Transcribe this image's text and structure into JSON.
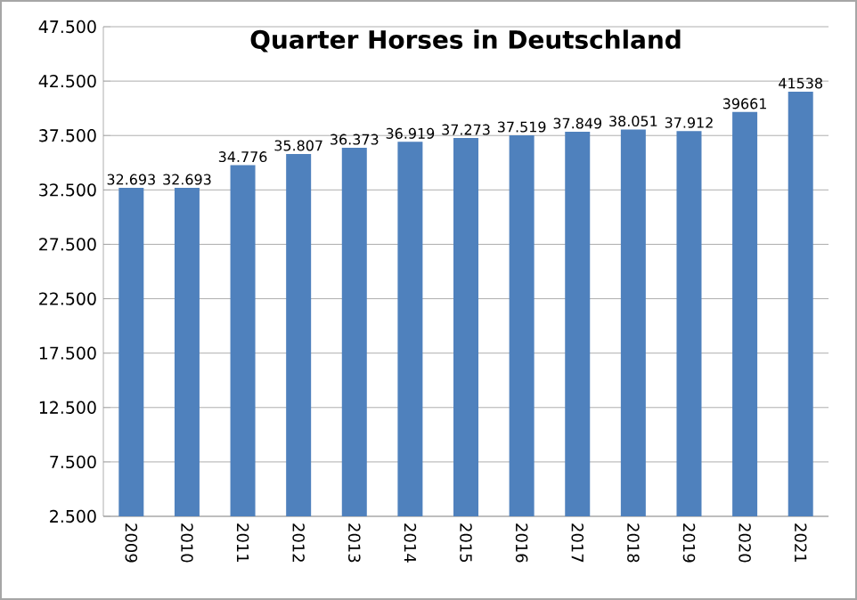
{
  "chart_data": {
    "type": "bar",
    "title": "Quarter Horses in Deutschland",
    "categories": [
      "2009",
      "2010",
      "2011",
      "2012",
      "2013",
      "2014",
      "2015",
      "2016",
      "2017",
      "2018",
      "2019",
      "2020",
      "2021"
    ],
    "values": [
      32693,
      32693,
      34776,
      35807,
      36373,
      36919,
      37273,
      37519,
      37849,
      38051,
      37912,
      39661,
      41538
    ],
    "value_labels": [
      "32.693",
      "32.693",
      "34.776",
      "35.807",
      "36.373",
      "36.919",
      "37.273",
      "37.519",
      "37.849",
      "38.051",
      "37.912",
      "39661",
      "41538"
    ],
    "color": "#4f81bd",
    "ylim": [
      2500,
      47500
    ],
    "yticks": [
      {
        "value": 2500,
        "label": "2.500"
      },
      {
        "value": 7500,
        "label": "7.500"
      },
      {
        "value": 12500,
        "label": "12.500"
      },
      {
        "value": 17500,
        "label": "17.500"
      },
      {
        "value": 22500,
        "label": "22.500"
      },
      {
        "value": 27500,
        "label": "27.500"
      },
      {
        "value": 32500,
        "label": "32.500"
      },
      {
        "value": 37500,
        "label": "37.500"
      },
      {
        "value": 42500,
        "label": "42.500"
      },
      {
        "value": 47500,
        "label": "47.500"
      }
    ],
    "grid": "y"
  }
}
